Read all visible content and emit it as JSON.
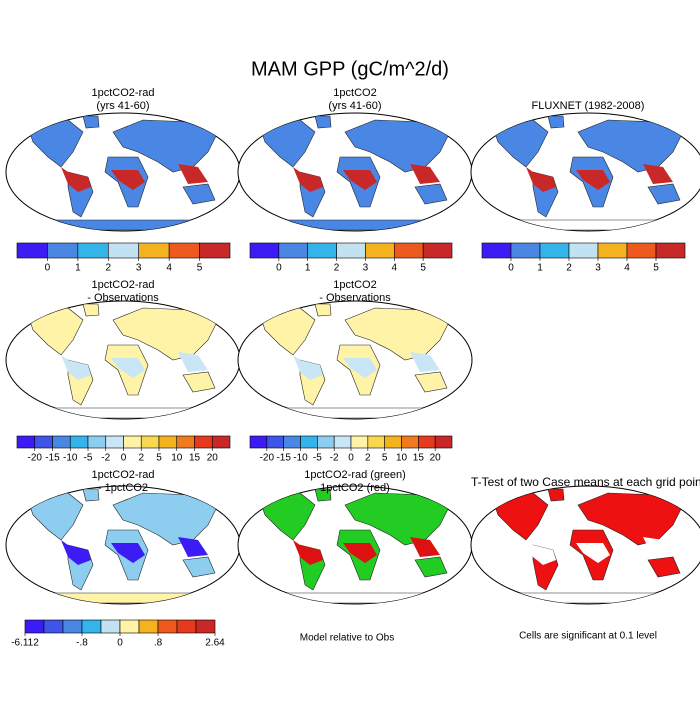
{
  "title": "MAM GPP (gC/m^2/d)",
  "panels": [
    {
      "title": [
        "1pctCO2-rad",
        "(yrs 41-60)"
      ]
    },
    {
      "title": [
        "1pctCO2",
        "(yrs 41-60)"
      ]
    },
    {
      "title": [
        "FLUXNET (1982-2008)"
      ]
    },
    {
      "title": [
        "1pctCO2-rad",
        "- Observations"
      ]
    },
    {
      "title": [
        "1pctCO2",
        "- Observations"
      ]
    },
    {
      "title": [
        "1pctCO2-rad",
        "- 1pctCO2"
      ]
    },
    {
      "title": [
        "1pctCO2-rad (green)",
        "1pctCO2 (red)"
      ]
    },
    {
      "title": [
        "T-Test of two Case means at each grid point"
      ]
    }
  ],
  "colorbars": [
    {
      "colors": [
        "#3c1cf5",
        "#4a86e4",
        "#34b4ea",
        "#c2e2f2",
        "#f5b21f",
        "#ee5a1e",
        "#c82828"
      ],
      "labels": [
        "0",
        "1",
        "2",
        "3",
        "4",
        "5"
      ]
    },
    {
      "colors": [
        "#3c1cf5",
        "#4a86e4",
        "#34b4ea",
        "#c2e2f2",
        "#f5b21f",
        "#ee5a1e",
        "#c82828"
      ],
      "labels": [
        "0",
        "1",
        "2",
        "3",
        "4",
        "5"
      ]
    },
    {
      "colors": [
        "#3c1cf5",
        "#4a86e4",
        "#34b4ea",
        "#c2e2f2",
        "#f5b21f",
        "#ee5a1e",
        "#c82828"
      ],
      "labels": [
        "0",
        "1",
        "2",
        "3",
        "4",
        "5"
      ]
    },
    {
      "colors": [
        "#3c1cf5",
        "#3e55e8",
        "#4a86e4",
        "#34b4ea",
        "#8ccdf0",
        "#c8e6f5",
        "#fff3a8",
        "#f8d850",
        "#f5b21f",
        "#f07a1e",
        "#e63a1e",
        "#c82828"
      ],
      "labels": [
        "-20",
        "-15",
        "-10",
        "-5",
        "-2",
        "0",
        "2",
        "5",
        "10",
        "15",
        "20"
      ]
    },
    {
      "colors": [
        "#3c1cf5",
        "#3e55e8",
        "#4a86e4",
        "#34b4ea",
        "#8ccdf0",
        "#c8e6f5",
        "#fff3a8",
        "#f8d850",
        "#f5b21f",
        "#f07a1e",
        "#e63a1e",
        "#c82828"
      ],
      "labels": [
        "-20",
        "-15",
        "-10",
        "-5",
        "-2",
        "0",
        "2",
        "5",
        "10",
        "15",
        "20"
      ]
    },
    {
      "colors": [
        "#3c1cf5",
        "#3e55e8",
        "#4a86e4",
        "#34b4ea",
        "#c2e2f2",
        "#fff3a8",
        "#f5b21f",
        "#ee5a1e",
        "#e63a1e",
        "#c82828"
      ],
      "labels": [
        "-6.112",
        "-.8",
        "0",
        ".8",
        "2.64"
      ]
    }
  ],
  "notes": [
    "Model relative to Obs",
    "Cells are significant at 0.1 level"
  ]
}
